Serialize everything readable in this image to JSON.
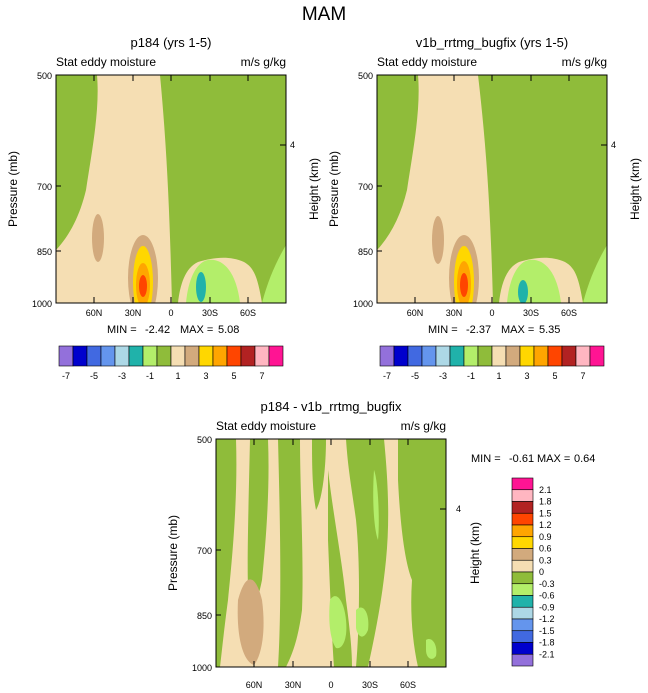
{
  "figure_title": "MAM",
  "chart_data": [
    {
      "type": "contour",
      "title": "p184 (yrs 1-5)",
      "left_label": "Stat eddy moisture",
      "right_label": "m/s g/kg",
      "ylabel": "Pressure (mb)",
      "y2label": "Height (km)",
      "y_ticks": [
        "500",
        "700",
        "850",
        "1000"
      ],
      "y2_ticks": [
        "4"
      ],
      "x_ticks": [
        "60N",
        "30N",
        "0",
        "30S",
        "60S"
      ],
      "min_label": "MIN =",
      "min_value": "-2.42",
      "max_label": "MAX =",
      "max_value": "5.08",
      "ylim": [
        1000,
        500
      ]
    },
    {
      "type": "contour",
      "title": "v1b_rrtmg_bugfix (yrs 1-5)",
      "left_label": "Stat eddy moisture",
      "right_label": "m/s g/kg",
      "ylabel": "Pressure (mb)",
      "y2label": "Height (km)",
      "y_ticks": [
        "500",
        "700",
        "850",
        "1000"
      ],
      "y2_ticks": [
        "4"
      ],
      "x_ticks": [
        "60N",
        "30N",
        "0",
        "30S",
        "60S"
      ],
      "min_label": "MIN =",
      "min_value": "-2.37",
      "max_label": "MAX =",
      "max_value": "5.35",
      "ylim": [
        1000,
        500
      ]
    },
    {
      "type": "contour",
      "title": "p184 - v1b_rrtmg_bugfix",
      "left_label": "Stat eddy moisture",
      "right_label": "m/s g/kg",
      "ylabel": "Pressure (mb)",
      "y2label": "Height (km)",
      "y_ticks": [
        "500",
        "700",
        "850",
        "1000"
      ],
      "y2_ticks": [
        "4"
      ],
      "x_ticks": [
        "60N",
        "30N",
        "0",
        "30S",
        "60S"
      ],
      "min_label": "MIN =",
      "min_value": "-0.61",
      "max_label": "MAX =",
      "max_value": "0.64",
      "ylim": [
        1000,
        500
      ]
    }
  ],
  "colorbar_top": {
    "labels": [
      "-7",
      "-5",
      "-3",
      "-1",
      "1",
      "3",
      "5",
      "7"
    ],
    "colors": [
      "#9370db",
      "#0000cd",
      "#4169e1",
      "#6495ed",
      "#add8e6",
      "#20b2aa",
      "#b3ee6a",
      "#8fbc3a",
      "#f5deb3",
      "#d2aa7d",
      "#ffd700",
      "#ffa500",
      "#ff4500",
      "#b22222",
      "#ffb6c1",
      "#ff1493"
    ]
  },
  "colorbar_diff": {
    "labels": [
      "2.1",
      "1.8",
      "1.5",
      "1.2",
      "0.9",
      "0.6",
      "0.3",
      "0",
      "-0.3",
      "-0.6",
      "-0.9",
      "-1.2",
      "-1.5",
      "-1.8",
      "-2.1"
    ],
    "colors": [
      "#ff1493",
      "#ffb6c1",
      "#b22222",
      "#ff4500",
      "#ffa500",
      "#ffd700",
      "#d2aa7d",
      "#f5deb3",
      "#8fbc3a",
      "#b3ee6a",
      "#20b2aa",
      "#add8e6",
      "#6495ed",
      "#4169e1",
      "#0000cd",
      "#9370db"
    ]
  },
  "colors": {
    "beige": "#f5deb3",
    "tan": "#d2aa7d",
    "green": "#8fbc3a",
    "light_green": "#b3ee6a",
    "yellow": "#ffd700",
    "orange": "#ffa500",
    "red_orange": "#ff4500",
    "teal": "#20b2aa"
  }
}
